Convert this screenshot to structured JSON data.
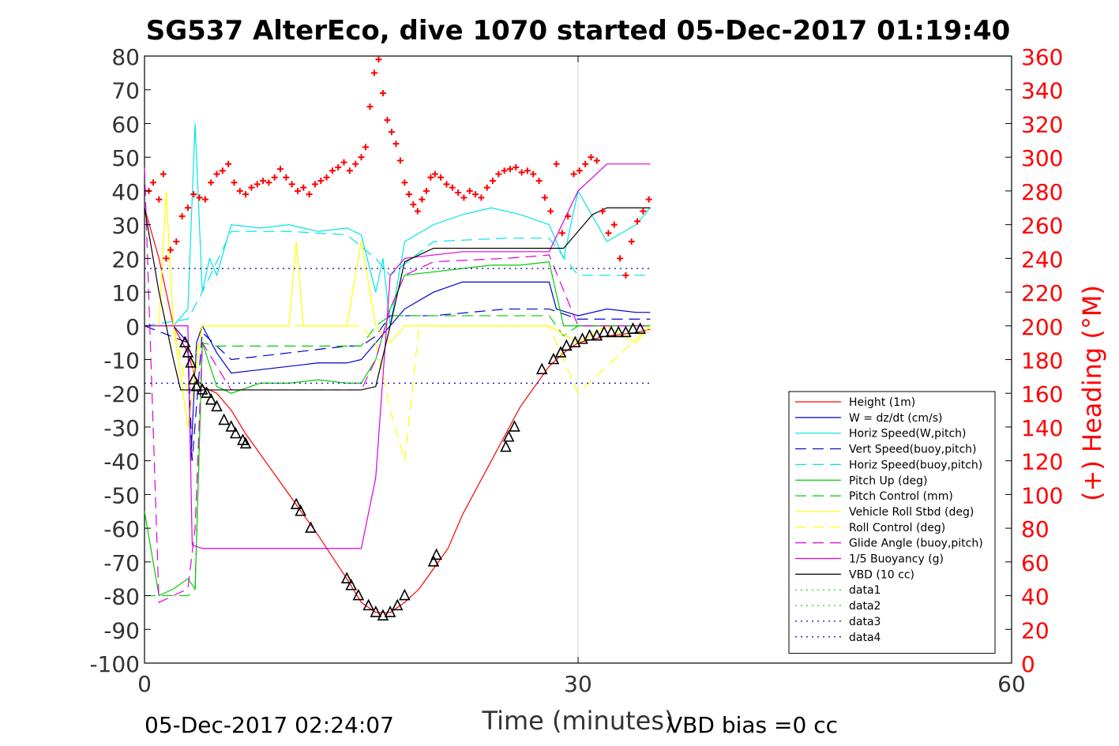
{
  "chart_data": {
    "type": "line",
    "title": "SG537 AlterEco, dive 1070 started 05-Dec-2017 01:19:40",
    "xlabel": "Time (minutes)",
    "ylabel_right": "(+) Heading (°M)",
    "xlim": [
      0,
      60
    ],
    "ylim": [
      -100,
      80
    ],
    "ylim_right": [
      0,
      360
    ],
    "xticks": [
      0,
      30,
      60
    ],
    "yticks": [
      -100,
      -90,
      -80,
      -70,
      -60,
      -50,
      -40,
      -30,
      -20,
      -10,
      0,
      10,
      20,
      30,
      40,
      50,
      60,
      70,
      80
    ],
    "yticks_right": [
      0,
      20,
      40,
      60,
      80,
      100,
      120,
      140,
      160,
      180,
      200,
      220,
      240,
      260,
      280,
      300,
      320,
      340,
      360
    ],
    "grid": "x-only at 30",
    "legend_position": "bottom-right",
    "footer_left": "05-Dec-2017 02:24:07",
    "footer_right": "VBD bias =0 cc",
    "colors": {
      "height": "#ff0000",
      "w": "#0000cc",
      "horiz_speed": "#00e5e5",
      "pitch": "#00cc00",
      "roll": "#ffff00",
      "glide": "#dd00dd",
      "buoyancy": "#dd00dd",
      "vbd": "#000000",
      "heading": "#ff0000"
    },
    "series": [
      {
        "name": "Height (1m)",
        "color": "#ff0000",
        "style": "solid",
        "x": [
          0,
          1,
          2,
          3,
          3.5,
          4,
          5,
          6,
          7,
          8,
          10,
          12,
          14,
          15,
          16,
          17,
          18,
          19,
          20,
          21,
          22,
          24,
          25,
          26,
          28,
          29,
          30,
          32,
          34,
          35
        ],
        "y": [
          35,
          20,
          0,
          -8,
          -15,
          -18,
          -20,
          -25,
          -32,
          -38,
          -50,
          -62,
          -75,
          -82,
          -85,
          -85,
          -82,
          -78,
          -72,
          -66,
          -56,
          -40,
          -32,
          -24,
          -12,
          -8,
          -5,
          -3,
          -2,
          -1
        ]
      },
      {
        "name": "W = dz/dt (cm/s)",
        "color": "#0000cc",
        "style": "solid",
        "x": [
          0,
          1,
          2,
          3,
          3.2,
          3.6,
          4,
          5,
          6,
          8,
          10,
          12,
          14,
          15,
          16,
          17,
          18,
          20,
          22,
          24,
          26,
          28,
          28.5,
          30,
          32,
          34,
          35
        ],
        "y": [
          0,
          0,
          0,
          -5,
          -40,
          -5,
          0,
          -8,
          -14,
          -13,
          -12,
          -11,
          -11,
          -10,
          -5,
          0,
          5,
          10,
          13,
          13,
          13,
          13,
          5,
          3,
          5,
          4,
          4
        ]
      },
      {
        "name": "Horiz Speed(W,pitch)",
        "color": "#00e5e5",
        "style": "solid",
        "x": [
          0,
          2,
          3,
          3.5,
          4,
          4.5,
          5,
          6,
          8,
          10,
          12,
          14,
          15,
          16,
          16.5,
          17,
          18,
          20,
          22,
          24,
          26,
          28,
          29,
          30,
          32,
          34,
          35
        ],
        "y": [
          0,
          0,
          5,
          60,
          10,
          20,
          15,
          30,
          29,
          30,
          28,
          29,
          27,
          10,
          20,
          0,
          25,
          30,
          33,
          35,
          33,
          30,
          20,
          40,
          25,
          30,
          35
        ]
      },
      {
        "name": "Vert Speed(buoy,pitch)",
        "color": "#0000cc",
        "style": "dashed",
        "x": [
          0,
          3,
          3.3,
          4,
          6,
          10,
          14,
          15,
          16,
          17,
          20,
          25,
          28,
          30,
          35
        ],
        "y": [
          0,
          -5,
          -40,
          -2,
          -10,
          -8,
          -6,
          -6,
          -3,
          3,
          3,
          5,
          5,
          2,
          2
        ]
      },
      {
        "name": "Horiz Speed(buoy,pitch)",
        "color": "#00e5e5",
        "style": "dashed",
        "x": [
          0,
          3,
          4,
          6,
          10,
          14,
          16,
          17,
          20,
          25,
          28,
          30,
          35
        ],
        "y": [
          0,
          2,
          10,
          28,
          28,
          27,
          20,
          15,
          25,
          26,
          26,
          15,
          15
        ]
      },
      {
        "name": "Pitch Up (deg)",
        "color": "#00cc00",
        "style": "solid",
        "x": [
          0,
          1,
          2,
          3,
          3.5,
          4,
          5,
          6,
          8,
          10,
          12,
          14,
          15,
          16,
          17,
          18,
          20,
          22,
          24,
          26,
          28,
          29,
          30,
          32,
          34,
          35
        ],
        "y": [
          -55,
          -80,
          -78,
          -75,
          -78,
          -5,
          -18,
          -20,
          -17,
          -17,
          -16,
          -17,
          -17,
          -10,
          5,
          15,
          16,
          17,
          18,
          18,
          19,
          0,
          0,
          0,
          0,
          0
        ]
      },
      {
        "name": "Pitch Control (mm)",
        "color": "#00cc00",
        "style": "dashed",
        "x": [
          0,
          3,
          3.5,
          4,
          5,
          6,
          10,
          14,
          15,
          16,
          17,
          18,
          20,
          25,
          28,
          29,
          30,
          35
        ],
        "y": [
          -80,
          -80,
          -78,
          -5,
          -6,
          -6,
          -6,
          -6,
          -6,
          0,
          3,
          3,
          3,
          3,
          3,
          -3,
          0,
          0
        ]
      },
      {
        "name": "Vehicle Roll Stbd (deg)",
        "color": "#ffff00",
        "style": "solid",
        "x": [
          0,
          1,
          1.5,
          2,
          3,
          4,
          5,
          6,
          8,
          10,
          10.5,
          11,
          12,
          14,
          15,
          16,
          17,
          18,
          20,
          22,
          24,
          26,
          28,
          30,
          32,
          34,
          35
        ],
        "y": [
          0,
          0,
          40,
          0,
          -30,
          0,
          0,
          0,
          0,
          0,
          25,
          0,
          0,
          0,
          25,
          0,
          -5,
          0,
          0,
          0,
          0,
          0,
          0,
          -5,
          0,
          -5,
          0
        ]
      },
      {
        "name": "Roll Control (deg)",
        "color": "#ffff00",
        "style": "dashed",
        "x": [
          0,
          1,
          2,
          3,
          4,
          6,
          10,
          14,
          15,
          16,
          17,
          18,
          19,
          20,
          25,
          28,
          30,
          35
        ],
        "y": [
          0,
          0,
          0,
          -20,
          0,
          0,
          0,
          0,
          0,
          -5,
          -25,
          -40,
          0,
          0,
          0,
          0,
          -20,
          0
        ]
      },
      {
        "name": "Glide Angle (buoy,pitch)",
        "color": "#dd00dd",
        "style": "dashed",
        "x": [
          0,
          1,
          2,
          3,
          3.5,
          4,
          6,
          10,
          14,
          15,
          16,
          17,
          18,
          20,
          25,
          28,
          30,
          35
        ],
        "y": [
          47,
          -82,
          -80,
          -78,
          -60,
          -5,
          -19,
          -19,
          -19,
          -19,
          -10,
          5,
          15,
          19,
          20,
          21,
          0,
          0
        ]
      },
      {
        "name": "1/5 Buoyancy (g)",
        "color": "#dd00dd",
        "style": "solid",
        "x": [
          0,
          2,
          3,
          3.3,
          4,
          6,
          10,
          14,
          15,
          16,
          17,
          18,
          20,
          22,
          24,
          26,
          28,
          30,
          32,
          34,
          35
        ],
        "y": [
          0,
          0,
          0,
          -65,
          -66,
          -66,
          -66,
          -66,
          -66,
          -45,
          15,
          20,
          21,
          22,
          22,
          22,
          22,
          40,
          48,
          48,
          48
        ]
      },
      {
        "name": "VBD (10 cc)",
        "color": "#000000",
        "style": "solid",
        "x": [
          0,
          1,
          2,
          2.5,
          3,
          4,
          6,
          10,
          14,
          15,
          16,
          17,
          18,
          20,
          22,
          24,
          26,
          28,
          29,
          30,
          31,
          32,
          33,
          34,
          35
        ],
        "y": [
          35,
          10,
          -10,
          -19,
          -19,
          -19,
          -19,
          -19,
          -19,
          -19,
          -18,
          0,
          19,
          23,
          23,
          23,
          23,
          23,
          23,
          28,
          33,
          35,
          35,
          35,
          35
        ]
      },
      {
        "name": "data1",
        "color": "#00cc00",
        "style": "dotted",
        "x": [],
        "y": []
      },
      {
        "name": "data2",
        "color": "#00cc00",
        "style": "dotted",
        "x": [],
        "y": []
      },
      {
        "name": "data3",
        "color": "#0000cc",
        "style": "dotted",
        "x": [
          0,
          35
        ],
        "y": [
          17,
          17
        ]
      },
      {
        "name": "data4",
        "color": "#0000cc",
        "style": "dotted",
        "x": [
          0,
          35
        ],
        "y": [
          -17,
          -17
        ]
      }
    ],
    "heading_markers": {
      "color": "#ff0000",
      "x": [
        0.3,
        0.6,
        1.0,
        1.3,
        1.5,
        1.8,
        2.2,
        2.6,
        3.0,
        3.4,
        3.8,
        4.2,
        4.6,
        5.0,
        5.4,
        5.8,
        6.2,
        6.6,
        7.0,
        7.4,
        7.8,
        8.2,
        8.6,
        9.0,
        9.4,
        9.8,
        10.2,
        10.6,
        11.0,
        11.4,
        11.8,
        12.2,
        12.6,
        13.0,
        13.4,
        13.8,
        14.2,
        14.6,
        15.0,
        15.3,
        15.6,
        15.9,
        16.2,
        16.5,
        16.8,
        17.1,
        17.4,
        17.7,
        18.0,
        18.3,
        18.6,
        18.9,
        19.2,
        19.5,
        19.8,
        20.1,
        20.5,
        20.9,
        21.3,
        21.7,
        22.1,
        22.5,
        22.9,
        23.3,
        23.7,
        24.1,
        24.5,
        24.9,
        25.3,
        25.7,
        26.1,
        26.5,
        26.9,
        27.3,
        27.7,
        28.1,
        28.5,
        28.9,
        29.3,
        29.7,
        30.1,
        30.5,
        30.9,
        31.3,
        31.7,
        32.1,
        32.5,
        32.9,
        33.3,
        33.7,
        34.1,
        34.5,
        34.9
      ],
      "y": [
        280,
        285,
        275,
        290,
        240,
        245,
        250,
        265,
        270,
        278,
        276,
        275,
        285,
        290,
        292,
        296,
        285,
        280,
        278,
        282,
        284,
        286,
        285,
        288,
        293,
        288,
        284,
        280,
        282,
        278,
        284,
        286,
        288,
        292,
        294,
        297,
        292,
        296,
        300,
        306,
        330,
        350,
        358,
        338,
        322,
        315,
        308,
        298,
        285,
        278,
        272,
        268,
        275,
        280,
        288,
        290,
        288,
        284,
        282,
        279,
        276,
        280,
        278,
        276,
        282,
        286,
        290,
        292,
        293,
        294,
        291,
        292,
        290,
        286,
        276,
        268,
        296,
        255,
        265,
        290,
        292,
        296,
        300,
        298,
        268,
        255,
        260,
        240,
        230,
        250,
        262,
        268,
        275
      ]
    },
    "depth_triangles": {
      "color": "#000000",
      "x": [
        2.8,
        3.0,
        3.2,
        3.4,
        3.6,
        4.0,
        4.3,
        4.6,
        5.0,
        5.5,
        6.0,
        6.3,
        6.8,
        7.0,
        10.5,
        10.8,
        11.5,
        14.0,
        14.3,
        14.8,
        15.5,
        16.0,
        16.5,
        17.0,
        17.5,
        18.0,
        20.0,
        20.2,
        25.0,
        25.2,
        25.6,
        27.5,
        28.3,
        28.8,
        29.2,
        29.8,
        30.3,
        30.8,
        31.3,
        31.8,
        32.3,
        32.8,
        33.3,
        33.8,
        34.3
      ],
      "y": [
        -5,
        -8,
        -11,
        -16,
        -18,
        -19,
        -20,
        -22,
        -24,
        -28,
        -30,
        -32,
        -34,
        -35,
        -53,
        -55,
        -60,
        -75,
        -77,
        -80,
        -83,
        -85,
        -86,
        -85,
        -83,
        -80,
        -70,
        -68,
        -36,
        -33,
        -30,
        -13,
        -10,
        -8,
        -6,
        -5,
        -4,
        -3,
        -3,
        -2,
        -2,
        -2,
        -2,
        -1,
        -1
      ]
    }
  }
}
